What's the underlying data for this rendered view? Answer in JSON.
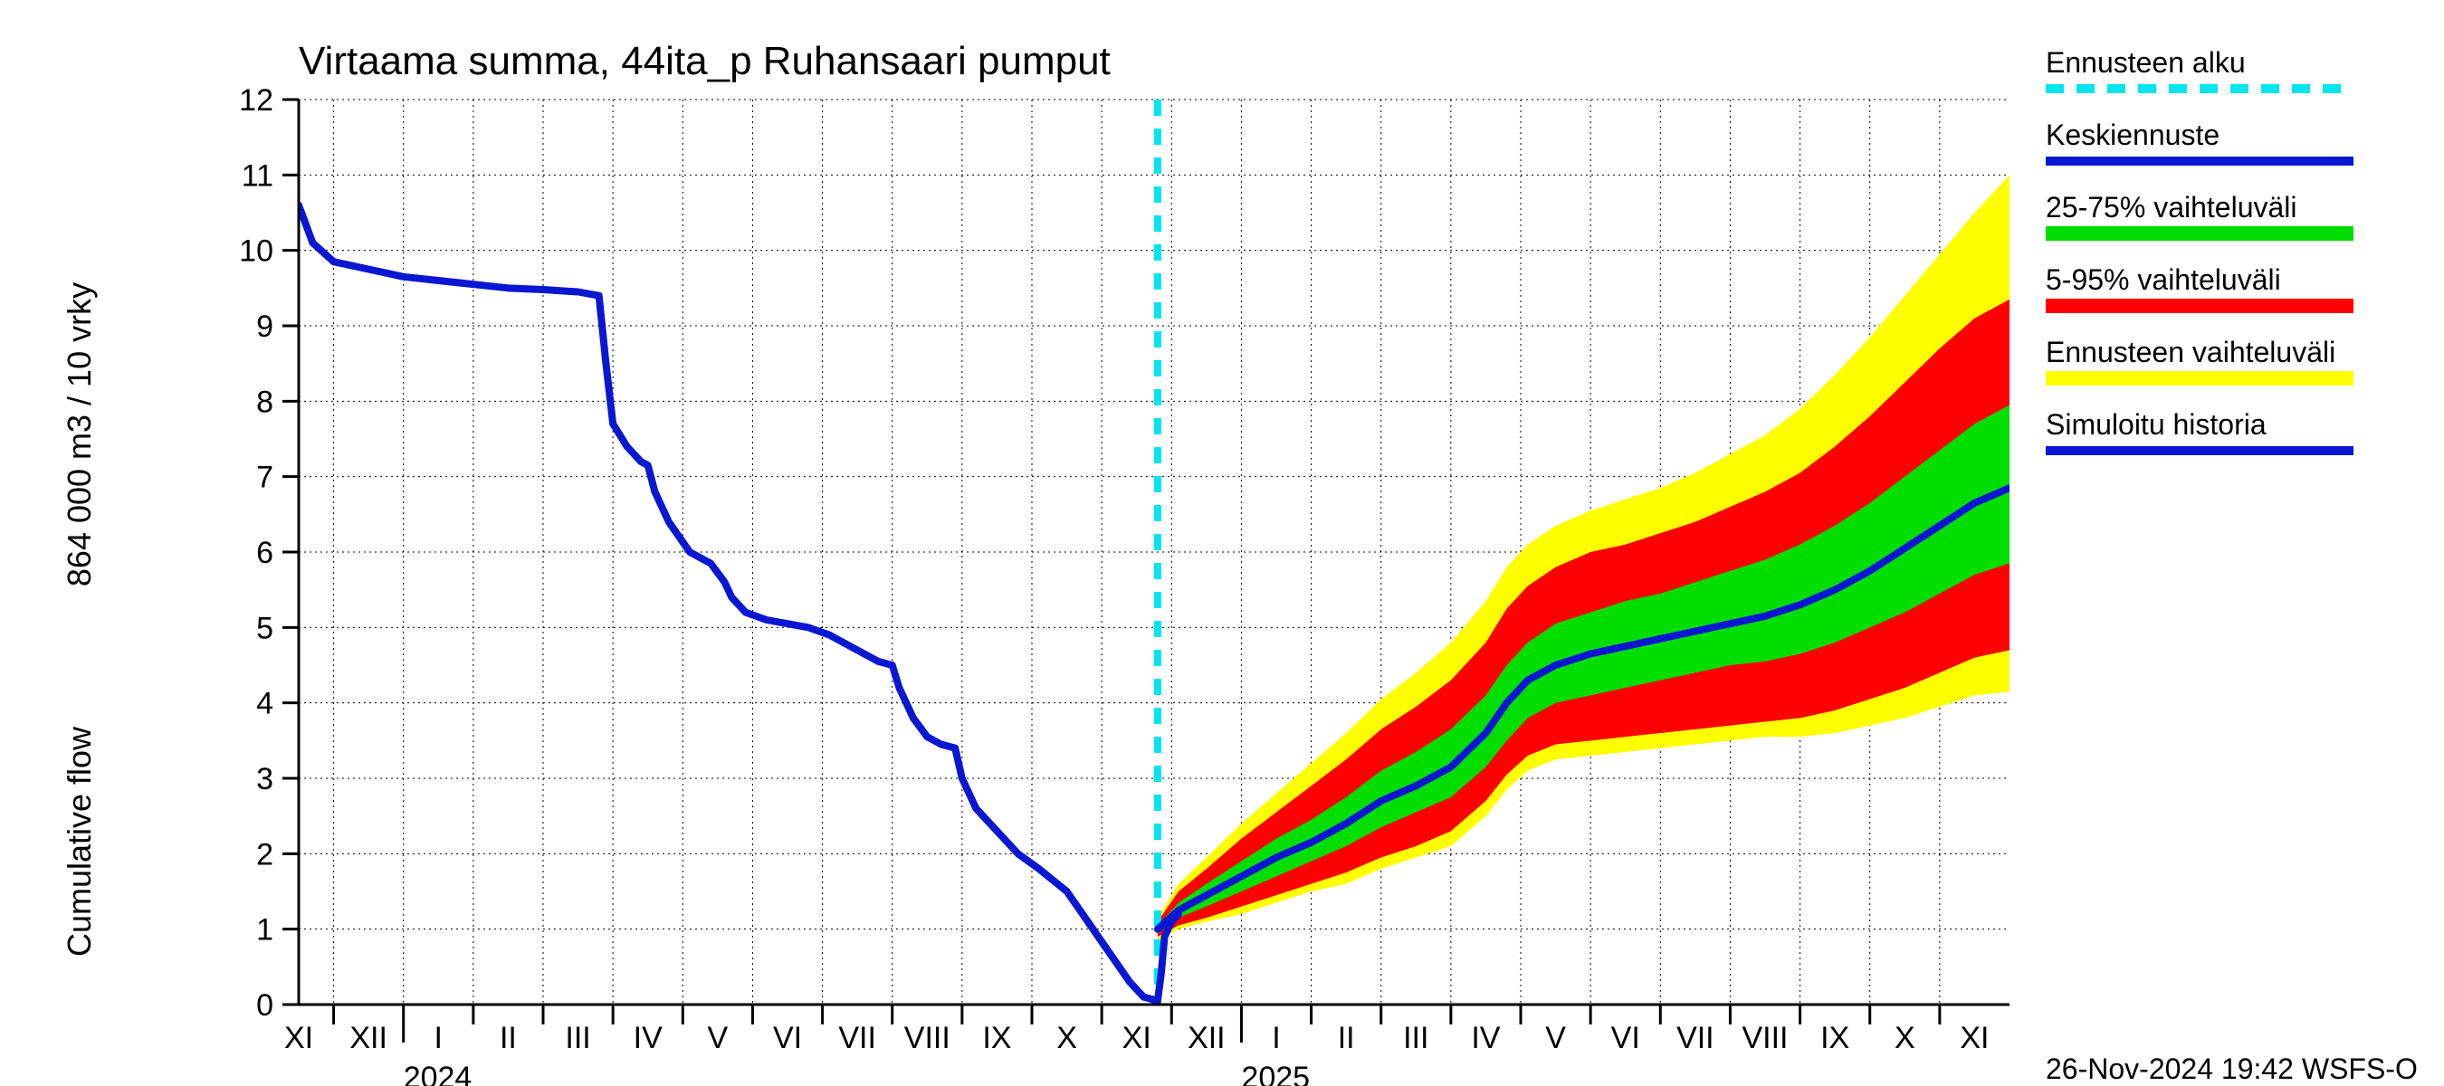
{
  "chart": {
    "type": "line_with_bands",
    "title": "Virtaama summa, 44ita_p Ruhansaari pumput",
    "title_fontsize": 44,
    "y_axis": {
      "label_line1": "Cumulative flow",
      "label_line2": "864 000 m3 / 10 vrky",
      "fontsize": 36,
      "min": 0,
      "max": 12,
      "ticks": [
        0,
        1,
        2,
        3,
        4,
        5,
        6,
        7,
        8,
        9,
        10,
        11,
        12
      ],
      "tick_fontsize": 34
    },
    "x_axis": {
      "months": [
        "XI",
        "XII",
        "I",
        "II",
        "III",
        "IV",
        "V",
        "VI",
        "VII",
        "VIII",
        "IX",
        "X",
        "XI",
        "XII",
        "I",
        "II",
        "III",
        "IV",
        "V",
        "VI",
        "VII",
        "VIII",
        "IX",
        "X",
        "XI"
      ],
      "month_count": 25,
      "years": [
        {
          "label": "2024",
          "position_index": 2
        },
        {
          "label": "2025",
          "position_index": 14
        }
      ],
      "tick_fontsize": 34
    },
    "plot": {
      "bg_color": "#ffffff",
      "grid_color": "#000000",
      "grid_dash": "2,4",
      "grid_width": 1,
      "axis_color": "#000000",
      "axis_width": 3
    },
    "forecast_start_index": 12.3,
    "colors": {
      "history": "#0a17d2",
      "median": "#0a17d2",
      "band_25_75": "#00de00",
      "band_5_95": "#ff0000",
      "band_full": "#ffff00",
      "forecast_line": "#00e5ee"
    },
    "line_widths": {
      "history": 8,
      "median": 8,
      "forecast_line": 8
    },
    "series": {
      "history": [
        [
          0,
          10.6
        ],
        [
          0.2,
          10.1
        ],
        [
          0.5,
          9.85
        ],
        [
          1,
          9.75
        ],
        [
          1.5,
          9.65
        ],
        [
          2,
          9.6
        ],
        [
          2.5,
          9.55
        ],
        [
          3,
          9.5
        ],
        [
          3.5,
          9.48
        ],
        [
          4,
          9.45
        ],
        [
          4.3,
          9.4
        ],
        [
          4.4,
          8.5
        ],
        [
          4.5,
          7.7
        ],
        [
          4.7,
          7.4
        ],
        [
          4.9,
          7.2
        ],
        [
          5.0,
          7.15
        ],
        [
          5.1,
          6.8
        ],
        [
          5.3,
          6.4
        ],
        [
          5.6,
          6.0
        ],
        [
          5.9,
          5.85
        ],
        [
          6.1,
          5.6
        ],
        [
          6.2,
          5.4
        ],
        [
          6.4,
          5.2
        ],
        [
          6.7,
          5.1
        ],
        [
          7.0,
          5.05
        ],
        [
          7.3,
          5.0
        ],
        [
          7.6,
          4.9
        ],
        [
          8.0,
          4.7
        ],
        [
          8.3,
          4.55
        ],
        [
          8.5,
          4.5
        ],
        [
          8.6,
          4.2
        ],
        [
          8.8,
          3.8
        ],
        [
          9.0,
          3.55
        ],
        [
          9.2,
          3.45
        ],
        [
          9.4,
          3.4
        ],
        [
          9.5,
          3.0
        ],
        [
          9.7,
          2.6
        ],
        [
          10.0,
          2.3
        ],
        [
          10.3,
          2.0
        ],
        [
          10.6,
          1.8
        ],
        [
          11.0,
          1.5
        ],
        [
          11.3,
          1.1
        ],
        [
          11.6,
          0.7
        ],
        [
          11.9,
          0.3
        ],
        [
          12.1,
          0.1
        ],
        [
          12.3,
          0.05
        ],
        [
          12.35,
          0.4
        ],
        [
          12.4,
          0.9
        ],
        [
          12.5,
          1.1
        ],
        [
          12.6,
          1.2
        ]
      ],
      "median": [
        [
          12.3,
          1.0
        ],
        [
          12.6,
          1.25
        ],
        [
          13.0,
          1.45
        ],
        [
          13.5,
          1.7
        ],
        [
          14.0,
          1.95
        ],
        [
          14.5,
          2.15
        ],
        [
          15.0,
          2.4
        ],
        [
          15.5,
          2.7
        ],
        [
          16.0,
          2.9
        ],
        [
          16.5,
          3.15
        ],
        [
          17.0,
          3.6
        ],
        [
          17.3,
          4.0
        ],
        [
          17.6,
          4.3
        ],
        [
          18.0,
          4.5
        ],
        [
          18.5,
          4.65
        ],
        [
          19.0,
          4.75
        ],
        [
          19.5,
          4.85
        ],
        [
          20.0,
          4.95
        ],
        [
          20.5,
          5.05
        ],
        [
          21.0,
          5.15
        ],
        [
          21.5,
          5.3
        ],
        [
          22.0,
          5.5
        ],
        [
          22.5,
          5.75
        ],
        [
          23.0,
          6.05
        ],
        [
          23.5,
          6.35
        ],
        [
          24.0,
          6.65
        ],
        [
          24.5,
          6.85
        ]
      ],
      "band_25_75_upper": [
        [
          12.3,
          1.05
        ],
        [
          12.6,
          1.35
        ],
        [
          13.0,
          1.6
        ],
        [
          13.5,
          1.9
        ],
        [
          14.0,
          2.2
        ],
        [
          14.5,
          2.45
        ],
        [
          15.0,
          2.75
        ],
        [
          15.5,
          3.1
        ],
        [
          16.0,
          3.35
        ],
        [
          16.5,
          3.65
        ],
        [
          17.0,
          4.1
        ],
        [
          17.3,
          4.5
        ],
        [
          17.6,
          4.8
        ],
        [
          18.0,
          5.05
        ],
        [
          18.5,
          5.2
        ],
        [
          19.0,
          5.35
        ],
        [
          19.5,
          5.45
        ],
        [
          20.0,
          5.6
        ],
        [
          20.5,
          5.75
        ],
        [
          21.0,
          5.9
        ],
        [
          21.5,
          6.1
        ],
        [
          22.0,
          6.35
        ],
        [
          22.5,
          6.65
        ],
        [
          23.0,
          7.0
        ],
        [
          23.5,
          7.35
        ],
        [
          24.0,
          7.7
        ],
        [
          24.5,
          7.95
        ]
      ],
      "band_25_75_lower": [
        [
          12.3,
          0.95
        ],
        [
          12.6,
          1.15
        ],
        [
          13.0,
          1.3
        ],
        [
          13.5,
          1.5
        ],
        [
          14.0,
          1.7
        ],
        [
          14.5,
          1.9
        ],
        [
          15.0,
          2.1
        ],
        [
          15.5,
          2.35
        ],
        [
          16.0,
          2.55
        ],
        [
          16.5,
          2.75
        ],
        [
          17.0,
          3.15
        ],
        [
          17.3,
          3.5
        ],
        [
          17.6,
          3.8
        ],
        [
          18.0,
          4.0
        ],
        [
          18.5,
          4.1
        ],
        [
          19.0,
          4.2
        ],
        [
          19.5,
          4.3
        ],
        [
          20.0,
          4.4
        ],
        [
          20.5,
          4.5
        ],
        [
          21.0,
          4.55
        ],
        [
          21.5,
          4.65
        ],
        [
          22.0,
          4.8
        ],
        [
          22.5,
          5.0
        ],
        [
          23.0,
          5.2
        ],
        [
          23.5,
          5.45
        ],
        [
          24.0,
          5.7
        ],
        [
          24.5,
          5.85
        ]
      ],
      "band_5_95_upper": [
        [
          12.3,
          1.1
        ],
        [
          12.6,
          1.5
        ],
        [
          13.0,
          1.8
        ],
        [
          13.5,
          2.2
        ],
        [
          14.0,
          2.55
        ],
        [
          14.5,
          2.9
        ],
        [
          15.0,
          3.25
        ],
        [
          15.5,
          3.65
        ],
        [
          16.0,
          3.95
        ],
        [
          16.5,
          4.3
        ],
        [
          17.0,
          4.8
        ],
        [
          17.3,
          5.25
        ],
        [
          17.6,
          5.55
        ],
        [
          18.0,
          5.8
        ],
        [
          18.5,
          6.0
        ],
        [
          19.0,
          6.1
        ],
        [
          19.5,
          6.25
        ],
        [
          20.0,
          6.4
        ],
        [
          20.5,
          6.6
        ],
        [
          21.0,
          6.8
        ],
        [
          21.5,
          7.05
        ],
        [
          22.0,
          7.4
        ],
        [
          22.5,
          7.8
        ],
        [
          23.0,
          8.25
        ],
        [
          23.5,
          8.7
        ],
        [
          24.0,
          9.1
        ],
        [
          24.5,
          9.35
        ]
      ],
      "band_5_95_lower": [
        [
          12.3,
          0.9
        ],
        [
          12.6,
          1.05
        ],
        [
          13.0,
          1.15
        ],
        [
          13.5,
          1.3
        ],
        [
          14.0,
          1.45
        ],
        [
          14.5,
          1.6
        ],
        [
          15.0,
          1.75
        ],
        [
          15.5,
          1.95
        ],
        [
          16.0,
          2.1
        ],
        [
          16.5,
          2.3
        ],
        [
          17.0,
          2.7
        ],
        [
          17.3,
          3.05
        ],
        [
          17.6,
          3.3
        ],
        [
          18.0,
          3.45
        ],
        [
          18.5,
          3.5
        ],
        [
          19.0,
          3.55
        ],
        [
          19.5,
          3.6
        ],
        [
          20.0,
          3.65
        ],
        [
          20.5,
          3.7
        ],
        [
          21.0,
          3.75
        ],
        [
          21.5,
          3.8
        ],
        [
          22.0,
          3.9
        ],
        [
          22.5,
          4.05
        ],
        [
          23.0,
          4.2
        ],
        [
          23.5,
          4.4
        ],
        [
          24.0,
          4.6
        ],
        [
          24.5,
          4.7
        ]
      ],
      "band_full_upper": [
        [
          12.3,
          1.15
        ],
        [
          12.6,
          1.6
        ],
        [
          13.0,
          1.95
        ],
        [
          13.5,
          2.4
        ],
        [
          14.0,
          2.8
        ],
        [
          14.5,
          3.2
        ],
        [
          15.0,
          3.6
        ],
        [
          15.5,
          4.05
        ],
        [
          16.0,
          4.4
        ],
        [
          16.5,
          4.8
        ],
        [
          17.0,
          5.35
        ],
        [
          17.3,
          5.8
        ],
        [
          17.6,
          6.1
        ],
        [
          18.0,
          6.35
        ],
        [
          18.5,
          6.55
        ],
        [
          19.0,
          6.7
        ],
        [
          19.5,
          6.85
        ],
        [
          20.0,
          7.05
        ],
        [
          20.5,
          7.3
        ],
        [
          21.0,
          7.55
        ],
        [
          21.5,
          7.9
        ],
        [
          22.0,
          8.35
        ],
        [
          22.5,
          8.85
        ],
        [
          23.0,
          9.4
        ],
        [
          23.5,
          9.95
        ],
        [
          24.0,
          10.5
        ],
        [
          24.5,
          11.0
        ]
      ],
      "band_full_lower": [
        [
          12.3,
          0.85
        ],
        [
          12.6,
          1.0
        ],
        [
          13.0,
          1.1
        ],
        [
          13.5,
          1.2
        ],
        [
          14.0,
          1.35
        ],
        [
          14.5,
          1.5
        ],
        [
          15.0,
          1.6
        ],
        [
          15.5,
          1.8
        ],
        [
          16.0,
          1.95
        ],
        [
          16.5,
          2.1
        ],
        [
          17.0,
          2.5
        ],
        [
          17.3,
          2.85
        ],
        [
          17.6,
          3.1
        ],
        [
          18.0,
          3.25
        ],
        [
          18.5,
          3.3
        ],
        [
          19.0,
          3.35
        ],
        [
          19.5,
          3.4
        ],
        [
          20.0,
          3.45
        ],
        [
          20.5,
          3.5
        ],
        [
          21.0,
          3.55
        ],
        [
          21.5,
          3.55
        ],
        [
          22.0,
          3.6
        ],
        [
          22.5,
          3.7
        ],
        [
          23.0,
          3.8
        ],
        [
          23.5,
          3.95
        ],
        [
          24.0,
          4.1
        ],
        [
          24.5,
          4.15
        ]
      ]
    },
    "legend": {
      "items": [
        {
          "label": "Ennusteen alku",
          "type": "dash",
          "color": "#00e5ee"
        },
        {
          "label": "Keskiennuste",
          "type": "line",
          "color": "#0a17d2"
        },
        {
          "label": "25-75% vaihteluväli",
          "type": "band",
          "color": "#00de00"
        },
        {
          "label": "5-95% vaihteluväli",
          "type": "band",
          "color": "#ff0000"
        },
        {
          "label": "Ennusteen vaihteluväli",
          "type": "band",
          "color": "#ffff00"
        },
        {
          "label": "Simuloitu historia",
          "type": "line",
          "color": "#0a17d2"
        }
      ],
      "fontsize": 32,
      "swatch_width": 340,
      "swatch_height": 16
    },
    "footer": "26-Nov-2024 19:42 WSFS-O"
  }
}
